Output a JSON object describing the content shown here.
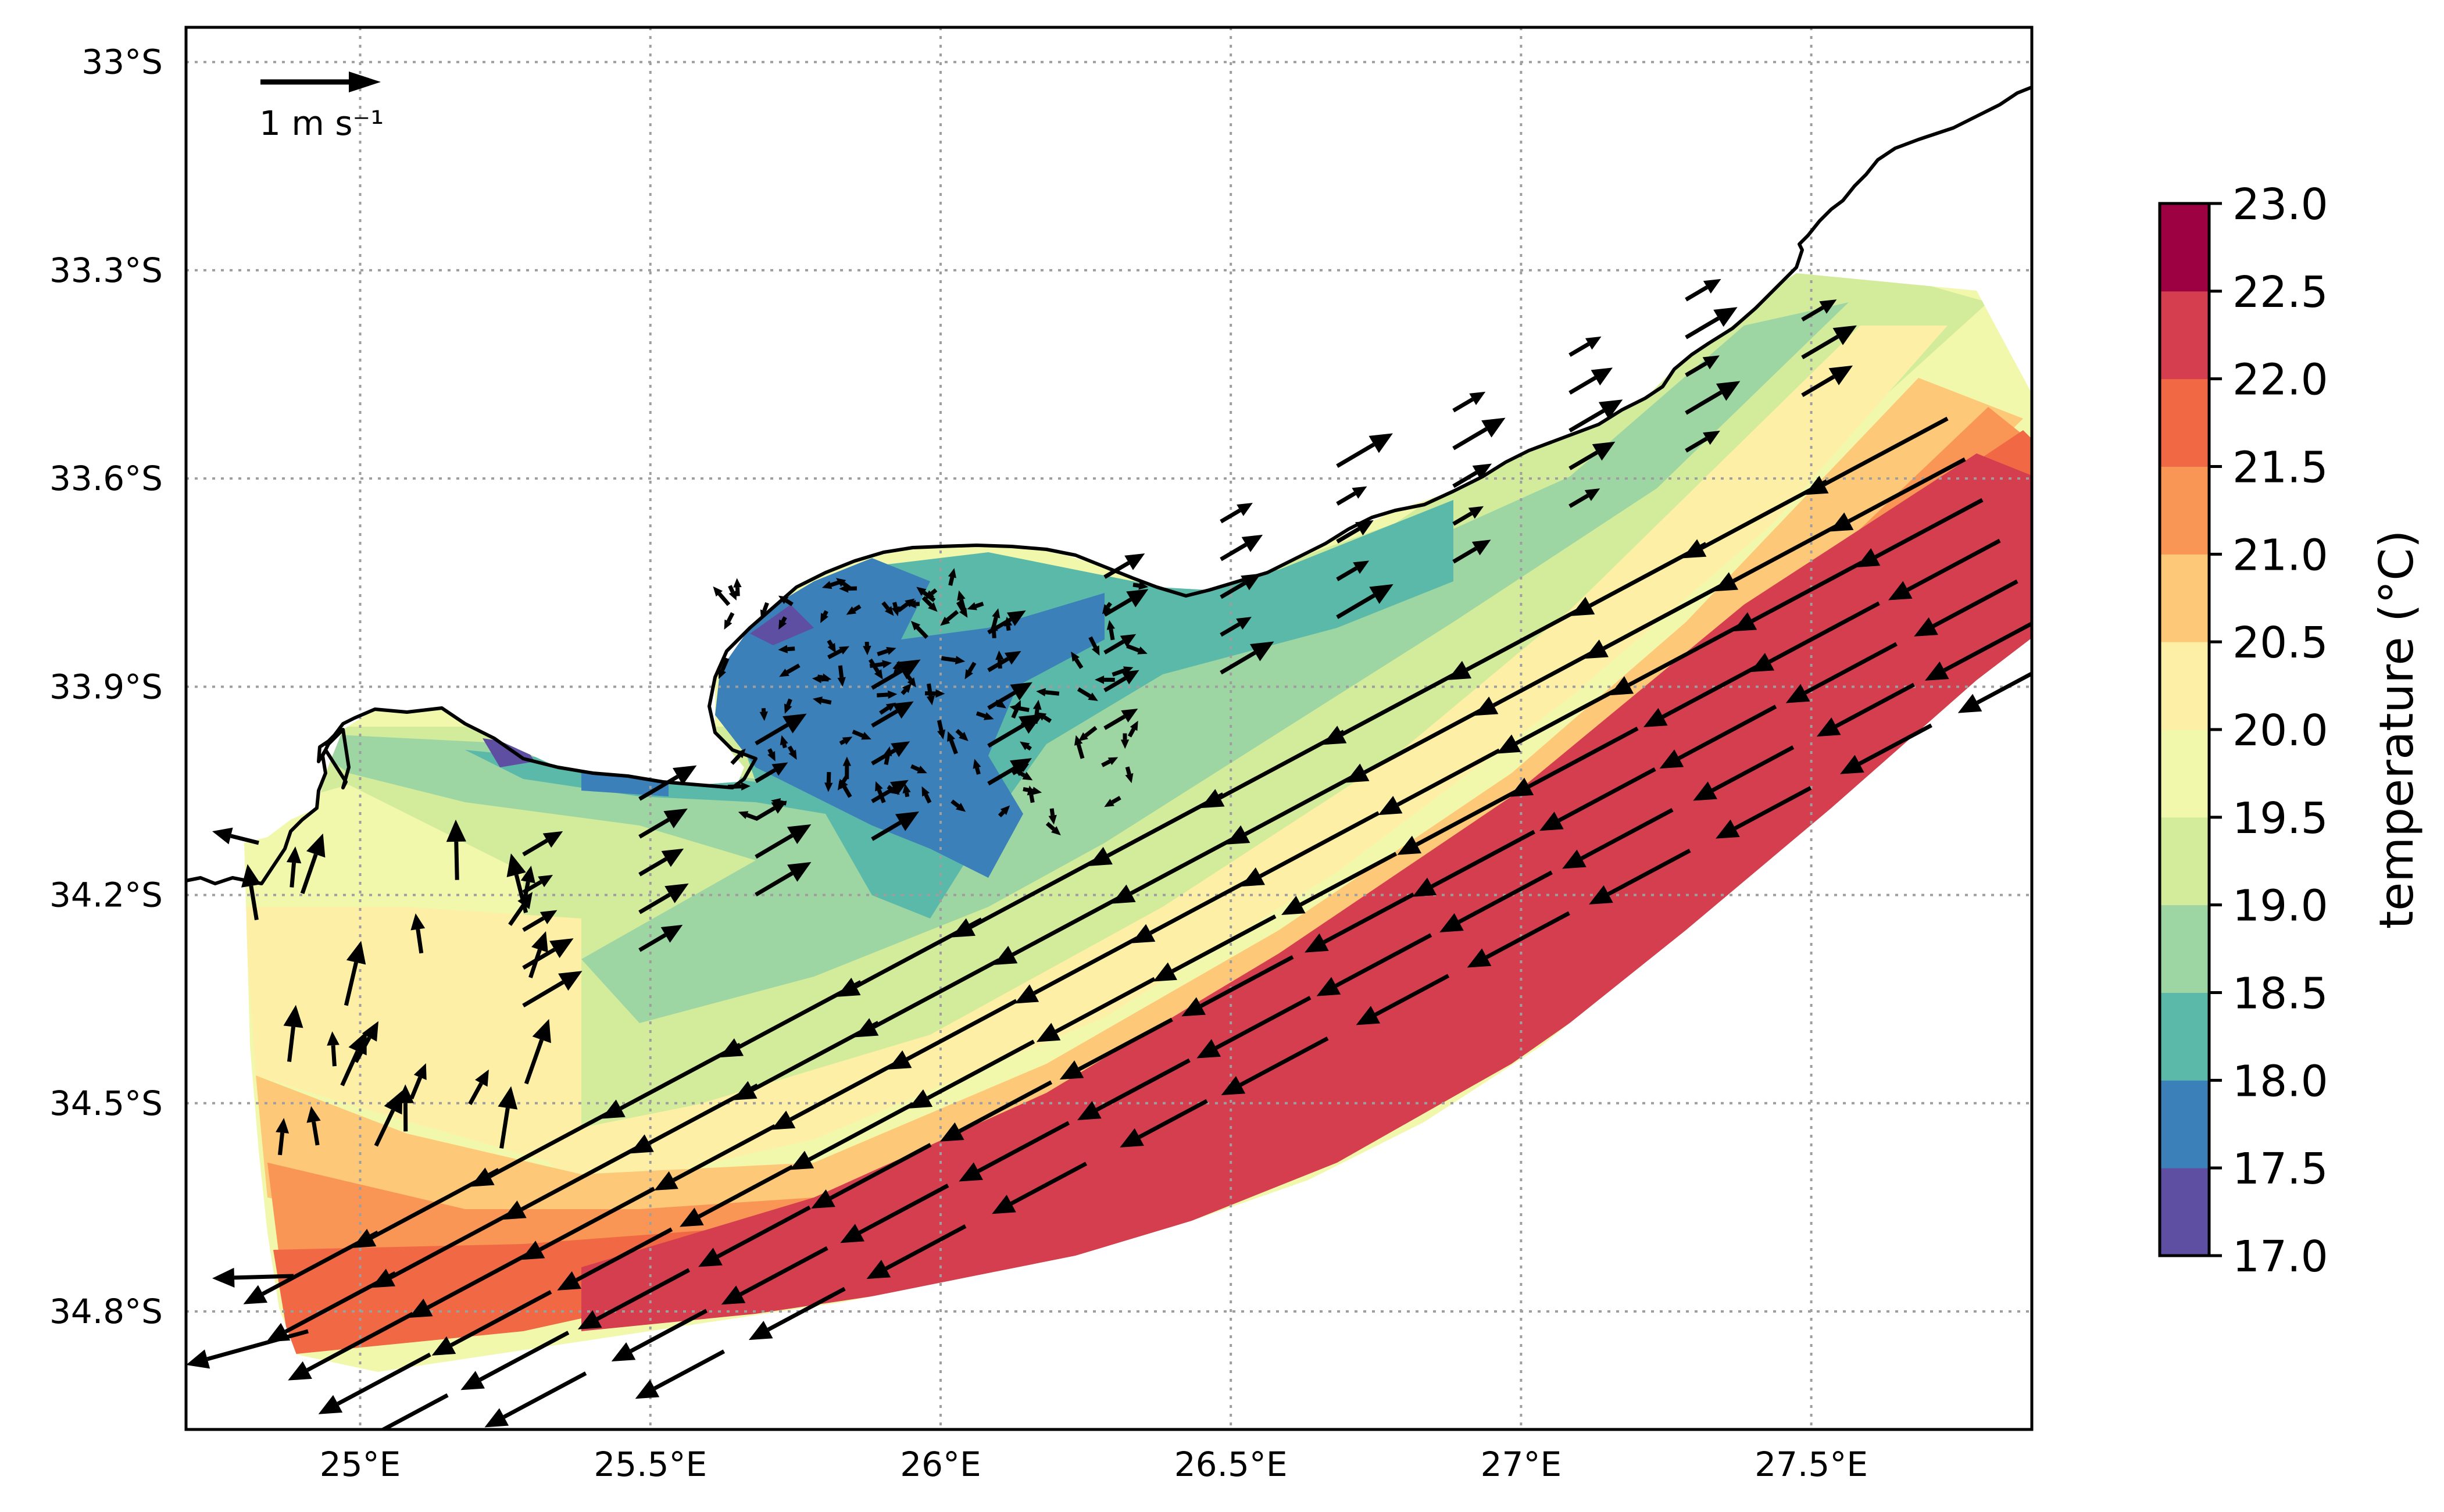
{
  "chart_data": {
    "type": "heatmap",
    "title": "",
    "xlabel": "",
    "ylabel": "",
    "x_ticks": [
      "25°E",
      "25.5°E",
      "26°E",
      "26.5°E",
      "27°E",
      "27.5°E"
    ],
    "x_tick_values": [
      25.0,
      25.5,
      26.0,
      26.5,
      27.0,
      27.5
    ],
    "y_ticks": [
      "33°S",
      "33.3°S",
      "33.6°S",
      "33.9°S",
      "34.2°S",
      "34.5°S",
      "34.8°S"
    ],
    "y_tick_values": [
      33.0,
      33.3,
      33.6,
      33.9,
      34.2,
      34.5,
      34.8
    ],
    "xlim": [
      24.7,
      27.88
    ],
    "ylim": [
      34.97,
      32.95
    ],
    "grid": true,
    "reference_arrow": {
      "label": "1 m s⁻¹",
      "speed": 1.0
    },
    "colorbar": {
      "title": "temperature (°C)",
      "position": "right",
      "ticks": [
        "23.0",
        "22.5",
        "22.0",
        "21.5",
        "21.0",
        "20.5",
        "20.0",
        "19.5",
        "19.0",
        "18.5",
        "18.0",
        "17.5",
        "17.0"
      ],
      "bounds": [
        17.0,
        17.5,
        18.0,
        18.5,
        19.0,
        19.5,
        20.0,
        20.5,
        21.0,
        21.5,
        22.0,
        22.5,
        23.0
      ],
      "colors": [
        "#5e4fa2",
        "#3b80b9",
        "#5bb9a9",
        "#9dd5a3",
        "#d3ec9c",
        "#f1f8ac",
        "#fdf0a6",
        "#fdc877",
        "#f99555",
        "#f06844",
        "#d53e4f",
        "#9e0142"
      ]
    },
    "fields": {
      "temperature": "banded temperature field along the coast, warm offshore current (21.5–22.5 °C), cool bay water (17.5–18.5 °C)",
      "current": "strong southwestward flow along the offshore edge, weak circulation in the bay"
    }
  },
  "colors": {
    "frame": "#000000",
    "coastline": "#000000",
    "grid": "#9e9e9e"
  }
}
